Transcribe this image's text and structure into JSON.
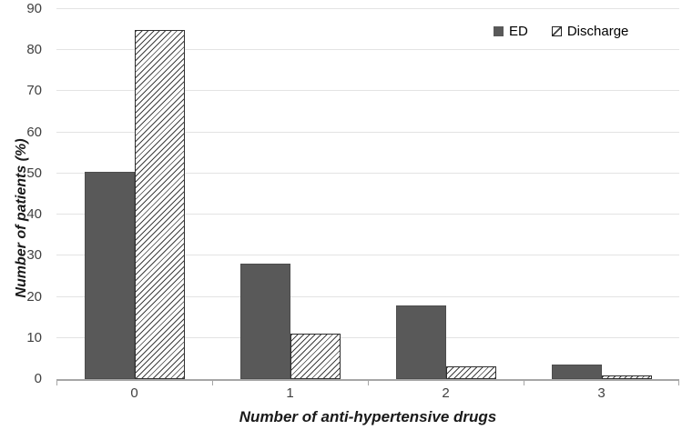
{
  "chart_data": {
    "type": "bar",
    "title": "",
    "categories": [
      "0",
      "1",
      "2",
      "3"
    ],
    "series": [
      {
        "name": "ED",
        "values": [
          50.5,
          28,
          18,
          3.5
        ],
        "fill": "solid",
        "color": "#595959"
      },
      {
        "name": "Discharge",
        "values": [
          85,
          11,
          3,
          0.8
        ],
        "fill": "diagonal-hatch",
        "color": "#ffffff",
        "hatch_color": "#3f3f3f"
      }
    ],
    "xlabel": "Number of anti-hypertensive drugs",
    "ylabel": "Number of patients (%)",
    "ylim": [
      0,
      90
    ],
    "yticks": [
      0,
      10,
      20,
      30,
      40,
      50,
      60,
      70,
      80,
      90
    ],
    "grid": "horizontal",
    "legend_position": "top-right"
  },
  "colors": {
    "bar_ed": "#595959",
    "bar_ed_border": "#4d4d4d",
    "hatch_line": "#3f3f3f",
    "hatch_border": "#2f2f2f",
    "gridline": "#e3e3e3",
    "axis_line": "#a6a6a6",
    "tick_text": "#404040"
  }
}
